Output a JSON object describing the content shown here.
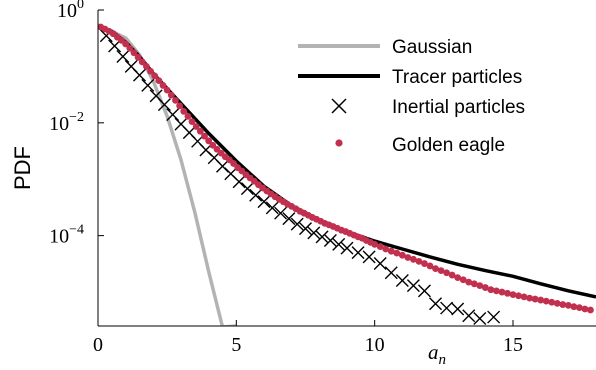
{
  "chart_data": {
    "type": "scatter",
    "title": "",
    "ylabel": "PDF",
    "xlabel_base": "a",
    "xlabel_sub": "n",
    "x_ticks": [
      {
        "value": 0,
        "label": "0"
      },
      {
        "value": 5,
        "label": "5"
      },
      {
        "value": 10,
        "label": "10"
      },
      {
        "value": 15,
        "label": "15"
      }
    ],
    "y_ticks": [
      {
        "value": 1,
        "base": "10",
        "exp": "0"
      },
      {
        "value": 0.01,
        "base": "10",
        "exp": "−2"
      },
      {
        "value": 0.0001,
        "base": "10",
        "exp": "−4"
      }
    ],
    "xlim": [
      0,
      18
    ],
    "ylim": [
      2.5e-06,
      1
    ],
    "y_scale": "log",
    "grid": false,
    "legend_position": "top-right",
    "series": [
      {
        "name": "Gaussian",
        "kind": "line",
        "color": "#b3b3b3",
        "x": [
          0,
          0.5,
          1,
          1.5,
          2,
          2.5,
          3,
          3.5,
          4,
          4.5,
          5
        ],
        "y": [
          0.54,
          0.42,
          0.32,
          0.16,
          0.055,
          0.013,
          0.0022,
          0.00026,
          2.3e-05,
          2.4e-06,
          2.5e-06
        ]
      },
      {
        "name": "Tracer particles",
        "kind": "line",
        "color": "#000000",
        "x": [
          0,
          0.5,
          1,
          1.5,
          2,
          3,
          4,
          5,
          6,
          7,
          8,
          9,
          10,
          11,
          12,
          13,
          14,
          15,
          16,
          17,
          18
        ],
        "y": [
          0.5,
          0.42,
          0.27,
          0.15,
          0.075,
          0.022,
          0.0065,
          0.0021,
          0.00075,
          0.00034,
          0.00019,
          0.000118,
          8e-05,
          5.8e-05,
          4.2e-05,
          3.1e-05,
          2.4e-05,
          1.9e-05,
          1.4e-05,
          1.05e-05,
          8.2e-06
        ]
      },
      {
        "name": "Inertial particles",
        "kind": "marker-x",
        "color": "#000000",
        "x": [
          0.3,
          0.6,
          0.9,
          1.2,
          1.5,
          1.8,
          2.1,
          2.4,
          2.7,
          3.0,
          3.3,
          3.6,
          3.9,
          4.2,
          4.5,
          4.8,
          5.1,
          5.4,
          5.7,
          6.0,
          6.3,
          6.6,
          6.9,
          7.2,
          7.5,
          7.8,
          8.1,
          8.4,
          8.7,
          9.0,
          9.4,
          9.8,
          10.2,
          10.6,
          11.0,
          11.4,
          11.8,
          12.2,
          12.6,
          13.0,
          13.4,
          13.8,
          14.3
        ],
        "y": [
          0.35,
          0.23,
          0.15,
          0.1,
          0.07,
          0.046,
          0.03,
          0.021,
          0.014,
          0.0095,
          0.0067,
          0.0047,
          0.0033,
          0.0024,
          0.0017,
          0.00125,
          0.0009,
          0.00068,
          0.00052,
          0.0004,
          0.00031,
          0.00025,
          0.0002,
          0.00016,
          0.000133,
          0.000112,
          9.5e-05,
          8.2e-05,
          7e-05,
          6e-05,
          5e-05,
          4.2e-05,
          3.2e-05,
          2.2e-05,
          1.6e-05,
          1.3e-05,
          1.05e-05,
          6.2e-06,
          5.2e-06,
          5e-06,
          3.8e-06,
          3.4e-06,
          3.6e-06
        ]
      },
      {
        "name": "Golden eagle",
        "kind": "marker-dot",
        "color": "#c1304f",
        "x": [
          0.1,
          0.25,
          0.4,
          0.55,
          0.7,
          0.85,
          1.0,
          1.15,
          1.3,
          1.45,
          1.6,
          1.75,
          1.9,
          2.05,
          2.2,
          2.35,
          2.5,
          2.65,
          2.8,
          2.95,
          3.1,
          3.25,
          3.4,
          3.55,
          3.7,
          3.85,
          4.0,
          4.15,
          4.3,
          4.45,
          4.6,
          4.75,
          4.9,
          5.05,
          5.2,
          5.35,
          5.5,
          5.65,
          5.8,
          5.95,
          6.1,
          6.25,
          6.4,
          6.55,
          6.7,
          6.85,
          7.0,
          7.15,
          7.3,
          7.45,
          7.6,
          7.75,
          7.9,
          8.05,
          8.2,
          8.35,
          8.5,
          8.65,
          8.8,
          8.95,
          9.1,
          9.25,
          9.4,
          9.55,
          9.7,
          9.85,
          10.0,
          10.2,
          10.4,
          10.6,
          10.8,
          11.0,
          11.2,
          11.4,
          11.6,
          11.8,
          12.0,
          12.2,
          12.4,
          12.6,
          12.8,
          13.0,
          13.2,
          13.4,
          13.6,
          13.8,
          14.0,
          14.2,
          14.4,
          14.6,
          14.8,
          15.0,
          15.2,
          15.4,
          15.6,
          15.8,
          16.0,
          16.2,
          16.4,
          16.6,
          16.8,
          17.0,
          17.2,
          17.4,
          17.6,
          17.8
        ],
        "y": [
          0.5,
          0.46,
          0.42,
          0.38,
          0.33,
          0.29,
          0.25,
          0.21,
          0.175,
          0.145,
          0.12,
          0.1,
          0.082,
          0.068,
          0.056,
          0.046,
          0.038,
          0.031,
          0.025,
          0.02,
          0.016,
          0.013,
          0.0105,
          0.0086,
          0.0071,
          0.0058,
          0.0048,
          0.004,
          0.0034,
          0.0029,
          0.0025,
          0.0022,
          0.0019,
          0.0016,
          0.0014,
          0.0012,
          0.00105,
          0.00092,
          0.0008,
          0.0007,
          0.00062,
          0.00055,
          0.00049,
          0.00044,
          0.0004,
          0.00036,
          0.00033,
          0.0003,
          0.00027,
          0.00025,
          0.00023,
          0.00021,
          0.000195,
          0.00018,
          0.000165,
          0.000155,
          0.000145,
          0.000135,
          0.000125,
          0.000118,
          0.00011,
          0.000102,
          9.5e-05,
          9e-05,
          8.2e-05,
          7.6e-05,
          7e-05,
          6.4e-05,
          5.8e-05,
          5.3e-05,
          4.9e-05,
          4.5e-05,
          4.1e-05,
          3.8e-05,
          3.5e-05,
          3.2e-05,
          2.9e-05,
          2.6e-05,
          2.4e-05,
          2.2e-05,
          2e-05,
          1.8e-05,
          1.65e-05,
          1.5e-05,
          1.4e-05,
          1.3e-05,
          1.2e-05,
          1.1e-05,
          1.05e-05,
          1e-05,
          9.5e-06,
          9e-06,
          8.6e-06,
          8.2e-06,
          7.8e-06,
          7.5e-06,
          7.2e-06,
          6.9e-06,
          6.6e-06,
          6.3e-06,
          6e-06,
          5.8e-06,
          5.5e-06,
          5.3e-06,
          5e-06,
          4.8e-06
        ]
      }
    ]
  }
}
